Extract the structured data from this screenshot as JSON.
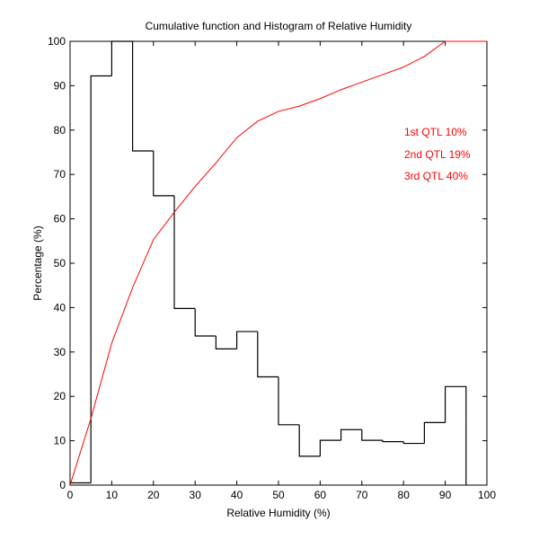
{
  "chart_data": {
    "type": "bar",
    "title": "Cumulative function and Histogram of Relative Humidity",
    "xlabel": "Relative Humidity (%)",
    "ylabel": "Percentage (%)",
    "xlim": [
      0,
      100
    ],
    "ylim": [
      0,
      100
    ],
    "x_ticks": [
      0,
      10,
      20,
      30,
      40,
      50,
      60,
      70,
      80,
      90,
      100
    ],
    "y_ticks": [
      0,
      10,
      20,
      30,
      40,
      50,
      60,
      70,
      80,
      90,
      100
    ],
    "grid": false,
    "series": [
      {
        "name": "Histogram",
        "kind": "step",
        "color": "#000000",
        "bin_edges": [
          0,
          5,
          10,
          15,
          20,
          25,
          30,
          35,
          40,
          45,
          50,
          55,
          60,
          65,
          70,
          75,
          80,
          85,
          90,
          95
        ],
        "values": [
          0.5,
          92.2,
          100,
          75.3,
          65.2,
          39.8,
          33.6,
          30.7,
          34.6,
          24.4,
          13.6,
          6.5,
          10.1,
          12.5,
          10.1,
          9.8,
          9.4,
          14.1,
          22.2
        ]
      },
      {
        "name": "Cumulative function",
        "kind": "line",
        "color": "#ff0000",
        "x": [
          0,
          5,
          10,
          15,
          20,
          25,
          30,
          35,
          40,
          45,
          50,
          55,
          60,
          65,
          70,
          75,
          80,
          85,
          90,
          95,
          100
        ],
        "y": [
          0,
          15,
          32,
          44.5,
          55.3,
          61.5,
          67.3,
          72.6,
          78.3,
          82,
          84.2,
          85.4,
          87.1,
          89.1,
          90.8,
          92.5,
          94.2,
          96.6,
          100,
          100,
          100
        ]
      }
    ],
    "annotations": [
      {
        "text": "1st QTL  10%",
        "color": "#ff0000"
      },
      {
        "text": "2nd QTL  19%",
        "color": "#ff0000"
      },
      {
        "text": "3rd QTL  40%",
        "color": "#ff0000"
      }
    ]
  }
}
